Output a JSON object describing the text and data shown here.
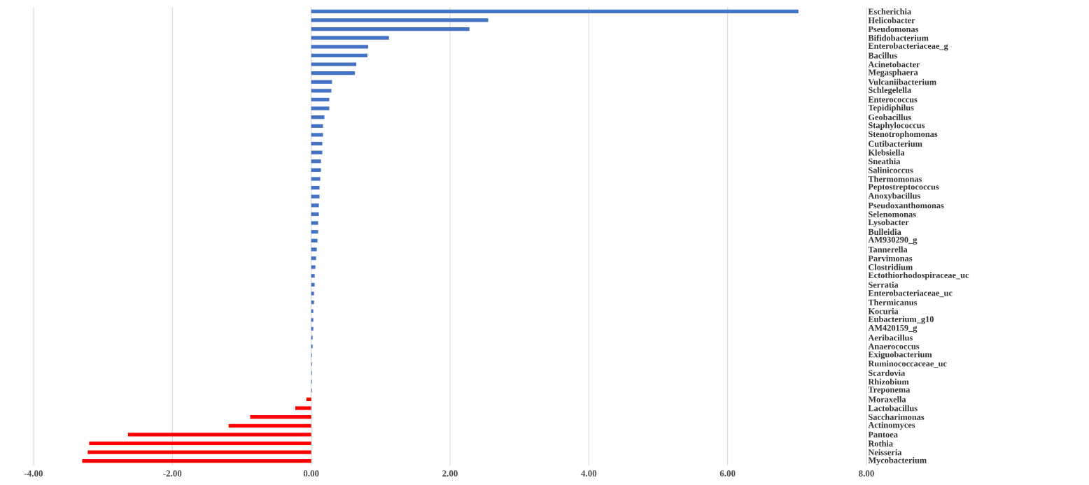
{
  "chart_data": {
    "type": "bar",
    "orientation": "horizontal",
    "categories": [
      "Escherichia",
      "Helicobacter",
      "Pseudomonas",
      "Bifidobacterium",
      "Enterobacteriaceae_g",
      "Bacillus",
      "Acinetobacter",
      "Megasphaera",
      "Vulcaniibacterium",
      "Schlegelella",
      "Enterococcus",
      "Tepidiphilus",
      "Geobacillus",
      "Staphylococcus",
      "Stenotrophomonas",
      "Cutibacterium",
      "Klebsiella",
      "Sneathia",
      "Salinicoccus",
      "Thermomonas",
      "Peptostreptococcus",
      "Anoxybacillus",
      "Pseudoxanthomonas",
      "Selenomonas",
      "Lysobacter",
      "Bulleidia",
      "AM930290_g",
      "Tannerella",
      "Parvimonas",
      "Clostridium",
      "Ectothiorhodospiraceae_uc",
      "Serratia",
      "Enterobacteriaceae_uc",
      "Thermicanus",
      "Kocuria",
      "Eubacterium_g10",
      "AM420159_g",
      "Aeribacillus",
      "Anaerococcus",
      "Exiguobacterium",
      "Ruminococcaceae_uc",
      "Scardovia",
      "Rhizobium",
      "Treponema",
      "Moraxella",
      "Lactobacillus",
      "Saccharimonas",
      "Actinomyces",
      "Pantoea",
      "Rothia",
      "Neisseria",
      "Mycobacterium"
    ],
    "values": [
      7.02,
      2.55,
      2.28,
      1.12,
      0.82,
      0.81,
      0.65,
      0.63,
      0.3,
      0.29,
      0.26,
      0.26,
      0.19,
      0.17,
      0.17,
      0.16,
      0.16,
      0.14,
      0.14,
      0.13,
      0.12,
      0.12,
      0.11,
      0.11,
      0.1,
      0.1,
      0.09,
      0.08,
      0.07,
      0.06,
      0.05,
      0.05,
      0.04,
      0.04,
      0.03,
      0.03,
      0.03,
      0.02,
      0.02,
      0.01,
      0.01,
      0.01,
      0.01,
      0.01,
      -0.07,
      -0.23,
      -0.88,
      -1.19,
      -2.64,
      -3.2,
      -3.22,
      -3.3
    ],
    "colors": [
      "#4472c4",
      "#4472c4",
      "#4472c4",
      "#4472c4",
      "#4472c4",
      "#4472c4",
      "#4472c4",
      "#4472c4",
      "#4472c4",
      "#4472c4",
      "#4472c4",
      "#4472c4",
      "#4472c4",
      "#4472c4",
      "#4472c4",
      "#4472c4",
      "#4472c4",
      "#4472c4",
      "#4472c4",
      "#4472c4",
      "#4472c4",
      "#4472c4",
      "#4472c4",
      "#4472c4",
      "#4472c4",
      "#4472c4",
      "#4472c4",
      "#4472c4",
      "#4472c4",
      "#4472c4",
      "#4472c4",
      "#4472c4",
      "#4472c4",
      "#4472c4",
      "#4472c4",
      "#4472c4",
      "#4472c4",
      "#4472c4",
      "#4472c4",
      "#4472c4",
      "#4472c4",
      "#4472c4",
      "#4472c4",
      "#4472c4",
      "#ff0000",
      "#ff0000",
      "#ff0000",
      "#ff0000",
      "#ff0000",
      "#ff0000",
      "#ff0000",
      "#ff0000"
    ],
    "xlim": [
      -4,
      8
    ],
    "xticks": [
      {
        "value": -4,
        "label": "-4.00"
      },
      {
        "value": -2,
        "label": "-2.00"
      },
      {
        "value": 0,
        "label": "0.00"
      },
      {
        "value": 2,
        "label": "2.00"
      },
      {
        "value": 4,
        "label": "4.00"
      },
      {
        "value": 6,
        "label": "6.00"
      },
      {
        "value": 8,
        "label": "8.00"
      }
    ],
    "grid": "x"
  }
}
